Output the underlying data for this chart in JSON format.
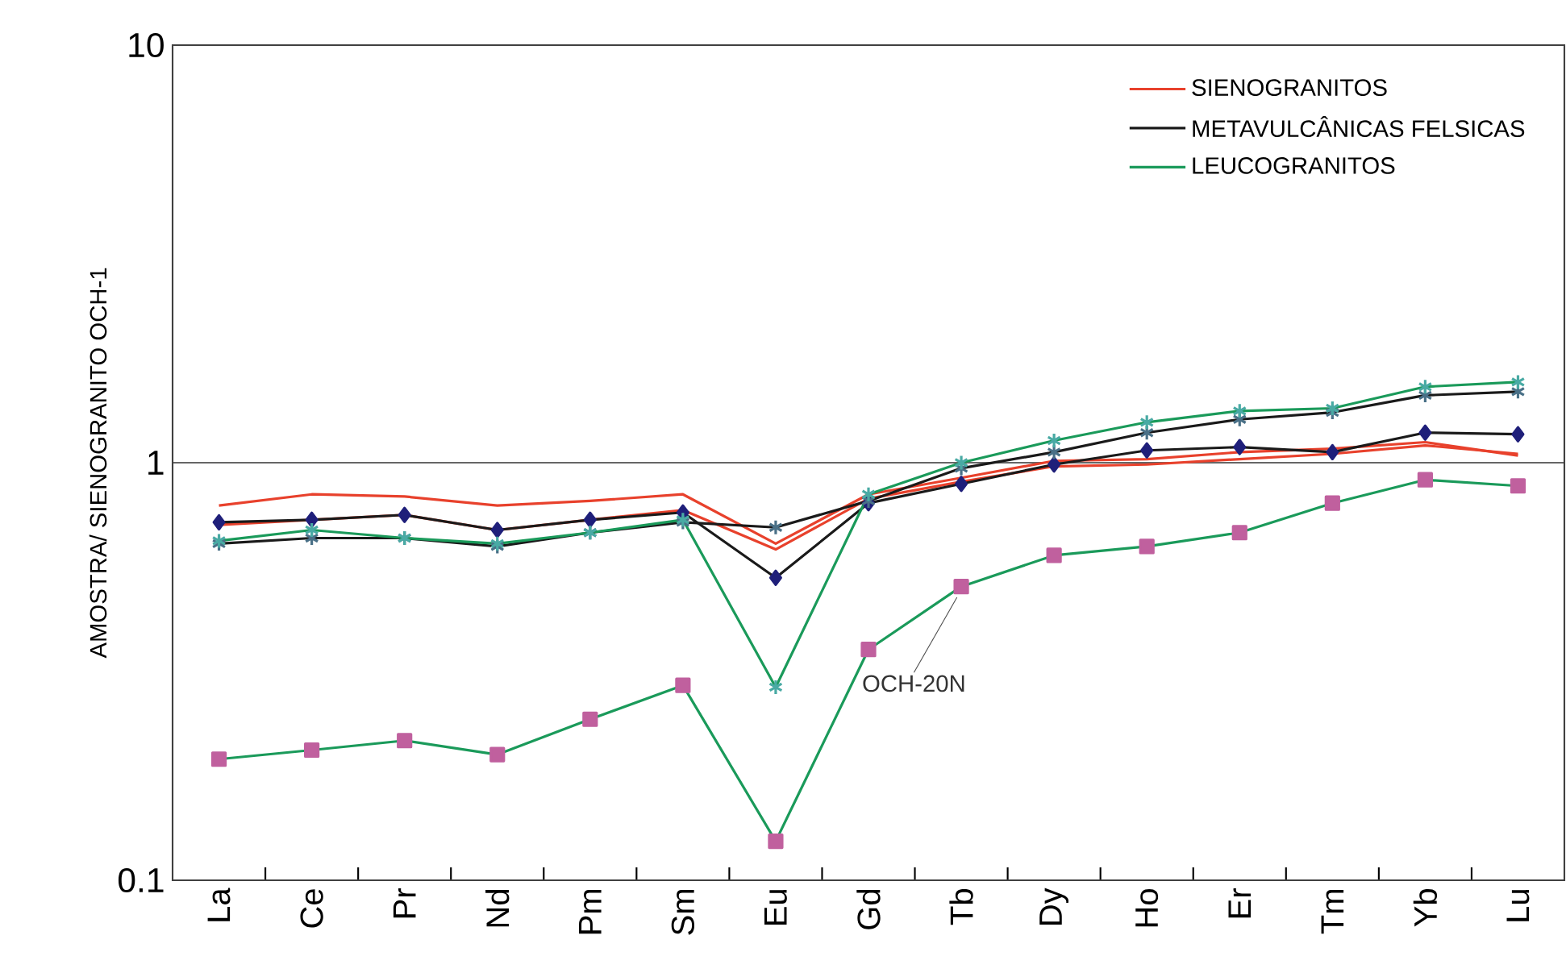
{
  "chart_data": {
    "type": "line",
    "ylabel": "AMOSTRA/ SIENOGRANITO OCH-1",
    "categories": [
      "La",
      "Ce",
      "Pr",
      "Nd",
      "Pm",
      "Sm",
      "Eu",
      "Gd",
      "Tb",
      "Dy",
      "Ho",
      "Er",
      "Tm",
      "Yb",
      "Lu"
    ],
    "log": "y",
    "ylim": [
      0.1,
      10
    ],
    "yticks": [
      0.1,
      1,
      10
    ],
    "grid": "y",
    "legend": "top right",
    "series": [
      {
        "name": "SIENOGRANITOS",
        "color": "#e8412c",
        "marker": "none",
        "values": [
          0.79,
          0.84,
          0.83,
          0.79,
          0.81,
          0.84,
          0.64,
          0.84,
          0.92,
          1.01,
          1.02,
          1.06,
          1.08,
          1.12,
          1.04
        ]
      },
      {
        "color": "#e8412c",
        "marker": "none",
        "values": [
          0.71,
          0.73,
          0.75,
          0.69,
          0.73,
          0.77,
          0.62,
          0.82,
          0.9,
          0.98,
          0.99,
          1.02,
          1.05,
          1.1,
          1.05
        ]
      },
      {
        "name": "METAVULCÂNICAS FELSICAS",
        "color": "#1a1a1a",
        "marker": "diamond",
        "values": [
          0.72,
          0.73,
          0.75,
          0.69,
          0.73,
          0.76,
          0.53,
          0.8,
          0.89,
          0.99,
          1.07,
          1.09,
          1.06,
          1.18,
          1.17
        ]
      },
      {
        "color": "#1a1a1a",
        "marker": "cross",
        "values": [
          0.64,
          0.66,
          0.66,
          0.63,
          0.68,
          0.72,
          0.7,
          0.81,
          0.97,
          1.06,
          1.18,
          1.27,
          1.32,
          1.45,
          1.48
        ]
      },
      {
        "name": "LEUCOGRANITOS",
        "color": "#1a9a5a",
        "marker": "cross",
        "values": [
          0.65,
          0.69,
          0.66,
          0.64,
          0.68,
          0.73,
          0.29,
          0.84,
          1.0,
          1.13,
          1.25,
          1.33,
          1.35,
          1.52,
          1.56
        ]
      },
      {
        "color": "#1a9a5a",
        "marker": "square",
        "values": [
          0.195,
          0.205,
          0.216,
          0.2,
          0.243,
          0.293,
          0.124,
          0.357,
          0.505,
          0.6,
          0.63,
          0.68,
          0.8,
          0.91,
          0.88
        ]
      }
    ],
    "annotations": [
      {
        "text": "OCH-20N",
        "x": "Tb",
        "y": 0.505
      }
    ]
  }
}
